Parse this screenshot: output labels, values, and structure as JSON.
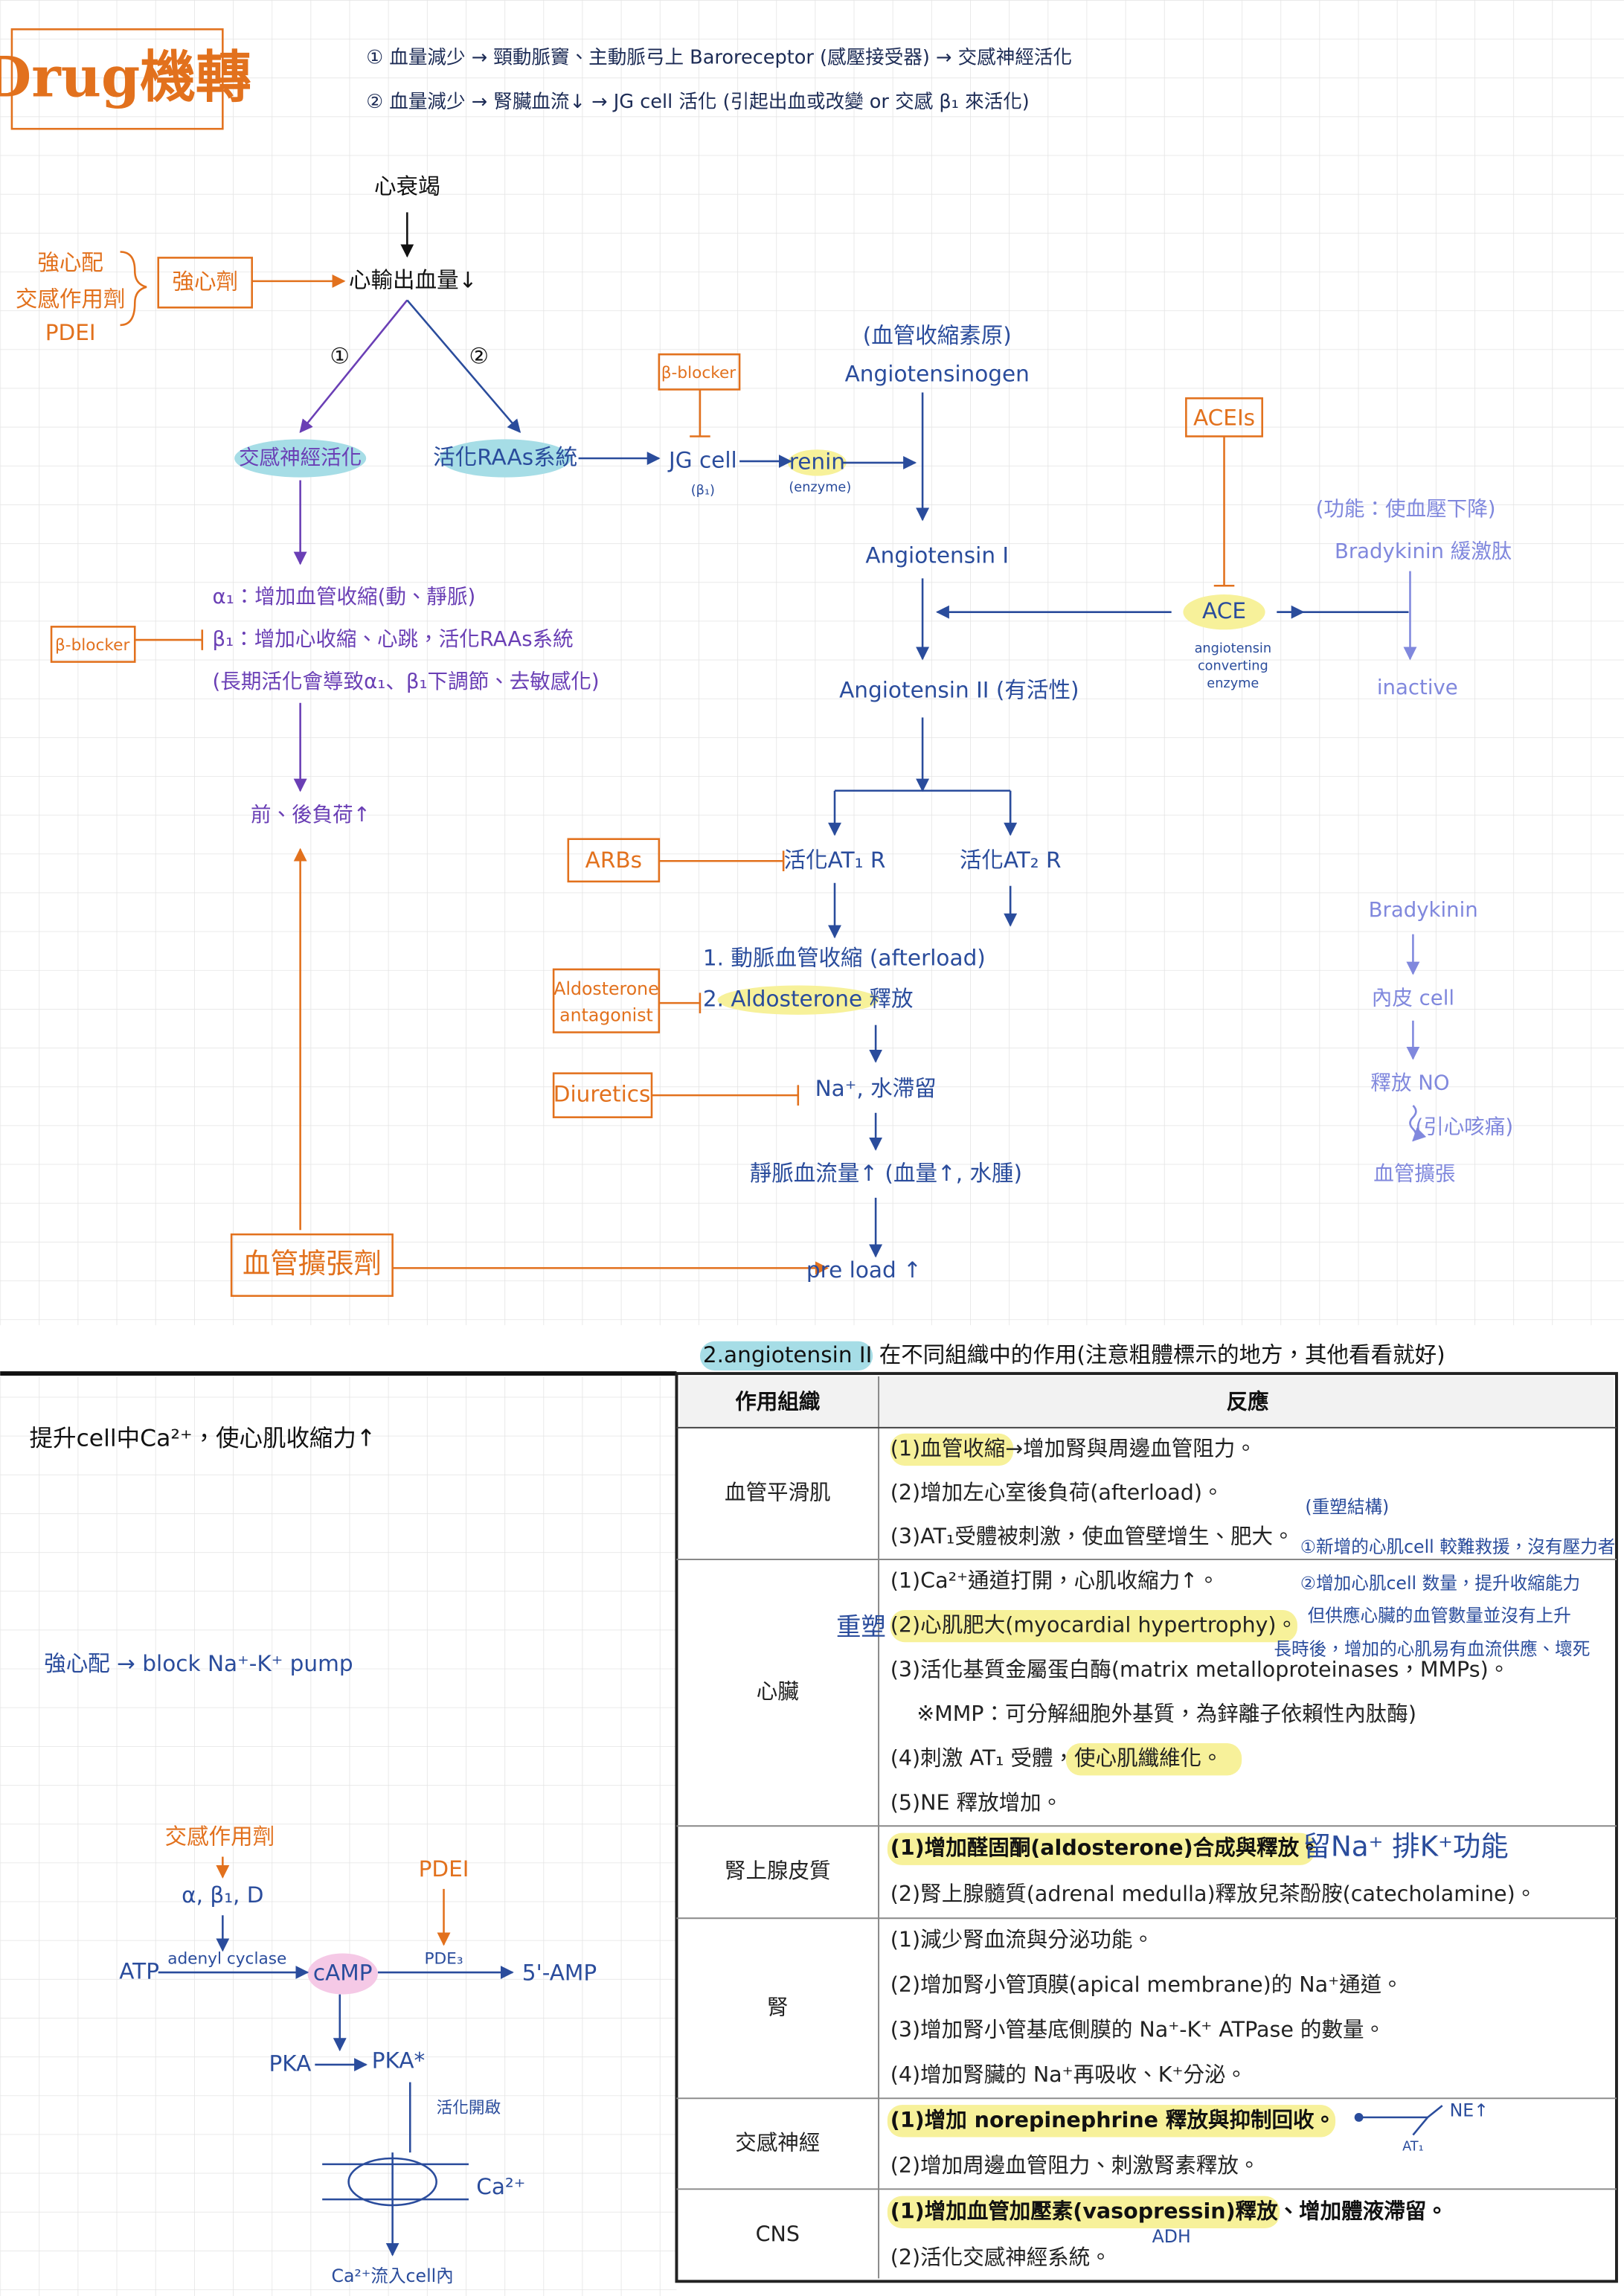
{
  "header": {
    "title": "Drug機轉",
    "notes": [
      "① 血量減少 → 頸動脈竇、主動脈弓上 Baroreceptor (感壓接受器) → 交感神經活化",
      "② 血量減少 → 腎臟血流↓ → JG cell 活化 (引起出血或改變 or 交感 β₁ 來活化)"
    ]
  },
  "flow": {
    "heart_failure": "心衰竭",
    "cardiac_output": "心輸出血量↓",
    "inotrope_types": [
      "強心配",
      "交感作用劑",
      "PDEI"
    ],
    "inotrope": "強心劑",
    "path_marks": [
      "①",
      "②"
    ],
    "sympathetic": "交感神經活化",
    "raas": "活化RAAs系統",
    "jg_cell": "JG cell",
    "jg_receptor": "(β₁)",
    "beta_blocker_jg": "β-blocker",
    "renin": "renin",
    "renin_note": "(enzyme)",
    "angiotensinogen_note": "(血管收縮素原)",
    "angiotensinogen": "Angiotensinogen",
    "angiotensin_1": "Angiotensin I",
    "angiotensin_2": "Angiotensin II (有活性)",
    "aceis": "ACEIs",
    "ace": "ACE",
    "ace_full": [
      "angiotensin",
      "converting",
      "enzyme"
    ],
    "bradykinin_note": "(功能：使血壓下降)",
    "bradykinin": "Bradykinin 緩激肽",
    "inactive": "inactive",
    "sympathetic_effects": [
      "α₁：增加血管收縮(動、靜脈)",
      "β₁：增加心收縮、心跳，活化RAAs系統",
      "(長期活化會導致α₁、β₁下調節、去敏感化)"
    ],
    "beta_blocker_left": "β-blocker",
    "load": "前、後負荷↑",
    "vasodilator": "血管擴張劑",
    "preload": "pre load ↑",
    "at1": "活化AT₁ R",
    "at2": "活化AT₂ R",
    "arbs": "ARBs",
    "at1_effects": [
      "1. 動脈血管收縮 (afterload)",
      "2. Aldosterone 釋放"
    ],
    "aldosterone_antagonist": [
      "Aldosterone",
      "antagonist"
    ],
    "sodium": "Na⁺, 水滯留",
    "diuretics": "Diuretics",
    "venous": "靜脈血流量↑ (血量↑, 水腫)",
    "no_pathway": [
      "Bradykinin",
      "內皮 cell",
      "釋放 NO",
      "(引心咳痛)",
      "血管擴張"
    ]
  },
  "camp": {
    "effect": "提升cell中Ca²⁺，使心肌收縮力↑",
    "digoxin": "強心配 → block Na⁺-K⁺ pump",
    "sympathomimetic": "交感作用劑",
    "receptors": "α, β₁, D",
    "pdei": "PDEI",
    "atp": "ATP",
    "enzyme": "adenyl cyclase",
    "camp": "cAMP",
    "pde": "PDE₃",
    "amp": "5'-AMP",
    "pka": "PKA",
    "pka_active": "PKA*",
    "open": "活化開啟",
    "ca": "Ca²⁺",
    "influx": "Ca²⁺流入cell內"
  },
  "table": {
    "caption": "2.angiotensin II 在不同組織中的作用(注意粗體標示的地方，其他看看就好)",
    "headers": [
      "作用組織",
      "反應"
    ],
    "rows": [
      {
        "tissue": "血管平滑肌",
        "reactions": [
          "(1)血管收縮→增加腎與周邊血管阻力。",
          "(2)增加左心室後負荷(afterload)。",
          "(3)AT₁受體被刺激，使血管壁增生、肥大。"
        ]
      },
      {
        "tissue": "心臟",
        "reactions": [
          "(1)Ca²⁺通道打開，心肌收縮力↑。",
          "(2)心肌肥大(myocardial hypertrophy)。",
          "(3)活化基質金屬蛋白酶(matrix metalloproteinases，MMPs)。",
          "※MMP：可分解細胞外基質，為鋅離子依賴性內肽酶)",
          "(4)刺激 AT₁ 受體，使心肌纖維化。",
          "(5)NE 釋放增加。"
        ]
      },
      {
        "tissue": "腎上腺皮質",
        "reactions": [
          "(1)增加醛固酮(aldosterone)合成與釋放。",
          "(2)腎上腺髓質(adrenal medulla)釋放兒茶酚胺(catecholamine)。"
        ]
      },
      {
        "tissue": "腎",
        "reactions": [
          "(1)減少腎血流與分泌功能。",
          "(2)增加腎小管頂膜(apical membrane)的 Na⁺通道。",
          "(3)增加腎小管基底側膜的 Na⁺-K⁺ ATPase 的數量。",
          "(4)增加腎臟的 Na⁺再吸收、K⁺分泌。"
        ]
      },
      {
        "tissue": "交感神經",
        "reactions": [
          "(1)增加 norepinephrine 釋放與抑制回收。",
          "(2)增加周邊血管阻力、刺激腎素釋放。"
        ]
      },
      {
        "tissue": "CNS",
        "reactions": [
          "(1)增加血管加壓素(vasopressin)釋放、增加體液滯留。",
          "(2)活化交感神經系統。"
        ]
      }
    ],
    "notes": {
      "remodel_mark": "重塑",
      "remodel_title": "(重塑結構)",
      "remodel": [
        "①新增的心肌cell 較難救援，沒有壓力者",
        "②增加心肌cell 数量，提升收縮能力",
        "但供應心臟的血管數量並沒有上升",
        "長時後，增加的心肌易有血流供應、壞死"
      ],
      "aldosterone": "留Na⁺ 排K⁺功能",
      "adh": "ADH",
      "ne": "NE↑",
      "at1": "AT₁"
    }
  }
}
